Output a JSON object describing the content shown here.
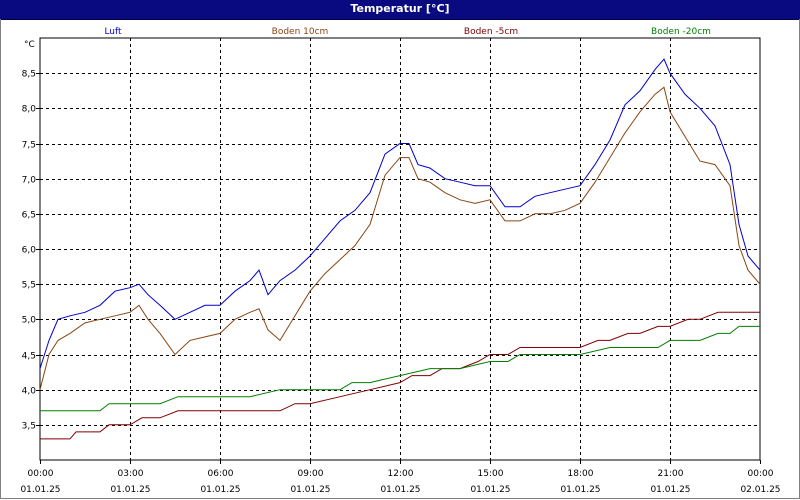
{
  "window": {
    "title": "Temperatur [°C]"
  },
  "chart_data": {
    "type": "line",
    "title": "Temperatur [°C]",
    "ylabel": "°C",
    "xlabel": "",
    "ylim": [
      3.0,
      9.0
    ],
    "xlim": [
      0,
      24
    ],
    "grid": true,
    "legend_position": "top",
    "y_ticks": [
      "3,5",
      "4,0",
      "4,5",
      "5,0",
      "5,5",
      "6,0",
      "6,5",
      "7,0",
      "7,5",
      "8,0",
      "8,5"
    ],
    "x_ticks": [
      {
        "time": "00:00",
        "date": "01.01.25"
      },
      {
        "time": "03:00",
        "date": "01.01.25"
      },
      {
        "time": "06:00",
        "date": "01.01.25"
      },
      {
        "time": "09:00",
        "date": "01.01.25"
      },
      {
        "time": "12:00",
        "date": "01.01.25"
      },
      {
        "time": "15:00",
        "date": "01.01.25"
      },
      {
        "time": "18:00",
        "date": "01.01.25"
      },
      {
        "time": "21:00",
        "date": "01.01.25"
      },
      {
        "time": "00:00",
        "date": "02.01.25"
      }
    ],
    "series": [
      {
        "name": "Luft",
        "color": "#0000cc",
        "x": [
          0,
          0.3,
          0.6,
          1,
          1.5,
          2,
          2.5,
          3,
          3.3,
          3.6,
          4,
          4.5,
          5,
          5.5,
          6,
          6.5,
          7,
          7.3,
          7.6,
          8,
          8.5,
          9,
          9.5,
          10,
          10.5,
          11,
          11.5,
          12,
          12.3,
          12.6,
          13,
          13.5,
          14,
          14.5,
          15,
          15.5,
          16,
          16.5,
          17,
          17.5,
          18,
          18.5,
          19,
          19.5,
          20,
          20.5,
          20.8,
          21,
          21.5,
          22,
          22.5,
          23,
          23.3,
          23.6,
          24
        ],
        "y": [
          4.3,
          4.7,
          5.0,
          5.05,
          5.1,
          5.2,
          5.4,
          5.45,
          5.5,
          5.35,
          5.2,
          5.0,
          5.1,
          5.2,
          5.2,
          5.4,
          5.55,
          5.7,
          5.35,
          5.55,
          5.7,
          5.9,
          6.15,
          6.4,
          6.55,
          6.8,
          7.35,
          7.5,
          7.5,
          7.2,
          7.15,
          7.0,
          6.95,
          6.9,
          6.9,
          6.6,
          6.6,
          6.75,
          6.8,
          6.85,
          6.9,
          7.2,
          7.55,
          8.05,
          8.25,
          8.55,
          8.7,
          8.5,
          8.2,
          8.0,
          7.75,
          7.2,
          6.35,
          5.9,
          5.7
        ]
      },
      {
        "name": "Boden 10cm",
        "color": "#8b4513",
        "x": [
          0,
          0.3,
          0.6,
          1,
          1.5,
          2,
          2.5,
          3,
          3.3,
          3.6,
          4,
          4.5,
          5,
          5.5,
          6,
          6.5,
          7,
          7.3,
          7.6,
          8,
          8.5,
          9,
          9.5,
          10,
          10.5,
          11,
          11.5,
          12,
          12.3,
          12.6,
          13,
          13.5,
          14,
          14.5,
          15,
          15.5,
          16,
          16.5,
          17,
          17.5,
          18,
          18.5,
          19,
          19.5,
          20,
          20.5,
          20.8,
          21,
          21.5,
          22,
          22.5,
          23,
          23.3,
          23.6,
          24
        ],
        "y": [
          4.0,
          4.5,
          4.7,
          4.8,
          4.95,
          5.0,
          5.05,
          5.1,
          5.2,
          5.0,
          4.8,
          4.5,
          4.7,
          4.75,
          4.8,
          5.0,
          5.1,
          5.15,
          4.85,
          4.7,
          5.05,
          5.4,
          5.65,
          5.85,
          6.05,
          6.35,
          7.05,
          7.3,
          7.3,
          7.0,
          6.95,
          6.8,
          6.7,
          6.65,
          6.7,
          6.4,
          6.4,
          6.5,
          6.5,
          6.55,
          6.65,
          6.95,
          7.3,
          7.65,
          7.95,
          8.2,
          8.3,
          7.95,
          7.6,
          7.25,
          7.2,
          6.9,
          6.05,
          5.7,
          5.5
        ]
      },
      {
        "name": "Boden -5cm",
        "color": "#800000",
        "x": [
          0,
          1,
          1.2,
          2,
          2.3,
          3,
          3.4,
          4,
          4.6,
          5,
          6,
          7,
          8,
          8.5,
          9,
          10,
          11,
          12,
          12.4,
          13,
          13.4,
          14,
          14.6,
          15,
          15.6,
          16,
          17,
          18,
          18.6,
          19,
          19.6,
          20,
          20.6,
          21,
          21.6,
          22,
          22.6,
          23,
          24
        ],
        "y": [
          3.3,
          3.3,
          3.4,
          3.4,
          3.5,
          3.5,
          3.6,
          3.6,
          3.7,
          3.7,
          3.7,
          3.7,
          3.7,
          3.8,
          3.8,
          3.9,
          4.0,
          4.1,
          4.2,
          4.2,
          4.3,
          4.3,
          4.4,
          4.5,
          4.5,
          4.6,
          4.6,
          4.6,
          4.7,
          4.7,
          4.8,
          4.8,
          4.9,
          4.9,
          5.0,
          5.0,
          5.1,
          5.1,
          5.1
        ]
      },
      {
        "name": "Boden -20cm",
        "color": "#008000",
        "x": [
          0,
          1,
          2,
          2.3,
          3,
          4,
          4.6,
          5,
          6,
          7,
          8,
          9,
          10,
          10.4,
          11,
          12,
          13,
          13.4,
          14,
          15,
          15.6,
          16,
          17,
          18,
          19,
          20,
          20.6,
          21,
          21.6,
          22,
          22.6,
          23,
          23.3,
          24
        ],
        "y": [
          3.7,
          3.7,
          3.7,
          3.8,
          3.8,
          3.8,
          3.9,
          3.9,
          3.9,
          3.9,
          4.0,
          4.0,
          4.0,
          4.1,
          4.1,
          4.2,
          4.3,
          4.3,
          4.3,
          4.4,
          4.4,
          4.5,
          4.5,
          4.5,
          4.6,
          4.6,
          4.6,
          4.7,
          4.7,
          4.7,
          4.8,
          4.8,
          4.9,
          4.9
        ]
      }
    ]
  }
}
